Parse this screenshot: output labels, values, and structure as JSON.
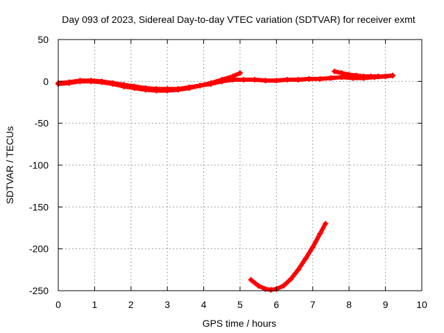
{
  "chart_data": {
    "type": "line",
    "title": "Day 093 of 2023, Sidereal Day-to-day VTEC variation (SDTVAR) for receiver exmt",
    "xlabel": "GPS time / hours",
    "ylabel": "SDTVAR / TECUs",
    "xlim": [
      0,
      10
    ],
    "ylim": [
      -250,
      50
    ],
    "xticks": [
      0,
      1,
      2,
      3,
      4,
      5,
      6,
      7,
      8,
      9,
      10
    ],
    "yticks": [
      50,
      0,
      -50,
      -100,
      -150,
      -200,
      -250
    ],
    "grid": true,
    "color": "#ff0000",
    "series": [
      {
        "values_x": [
          0.0,
          0.3,
          0.6,
          0.9,
          1.2,
          1.5,
          1.8,
          2.1,
          2.4,
          2.7,
          3.0,
          3.3,
          3.6,
          3.9,
          4.2,
          4.5,
          4.8,
          5.1,
          5.4,
          5.7,
          6.0,
          6.3,
          6.6,
          6.9,
          7.2,
          7.5,
          7.8,
          8.1,
          8.4,
          8.7,
          9.0,
          9.2
        ],
        "values_y": [
          -2,
          -1,
          1,
          1,
          0,
          -2,
          -4,
          -6,
          -8,
          -9,
          -9,
          -9,
          -7,
          -5,
          -3,
          0,
          2,
          2,
          2,
          1,
          1,
          2,
          2,
          3,
          3,
          4,
          5,
          4,
          4,
          5,
          6,
          7
        ]
      },
      {
        "values_x": [
          0.0,
          0.3,
          0.6,
          0.9,
          1.2,
          1.5,
          1.8,
          2.1,
          2.4,
          2.7,
          3.0,
          3.3,
          3.6,
          3.9,
          4.2,
          4.5,
          4.8,
          5.0
        ],
        "values_y": [
          -3,
          -2,
          0,
          0,
          -1,
          -3,
          -6,
          -8,
          -10,
          -11,
          -11,
          -10,
          -8,
          -5,
          -2,
          2,
          6,
          10
        ]
      },
      {
        "values_x": [
          7.6,
          7.8,
          8.0,
          8.2,
          8.4,
          8.6,
          8.8,
          9.0,
          9.2
        ],
        "values_y": [
          12,
          10,
          8,
          7,
          6,
          6,
          6,
          6,
          7
        ]
      },
      {
        "values_x": [
          5.3,
          5.5,
          5.7,
          5.85,
          6.0,
          6.2,
          6.4,
          6.6,
          6.8,
          7.0,
          7.2,
          7.35
        ],
        "values_y": [
          -237,
          -244,
          -248,
          -249,
          -248,
          -244,
          -236,
          -225,
          -212,
          -198,
          -182,
          -170
        ]
      }
    ]
  }
}
